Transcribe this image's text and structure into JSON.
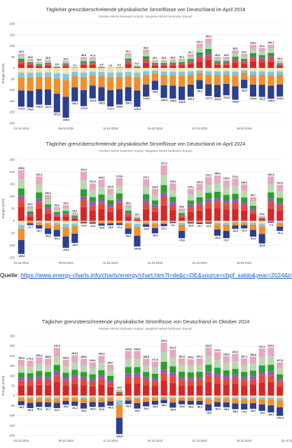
{
  "source": {
    "label": "Quelle:",
    "url": "https://www.energy-charts.info/charts/energy/chart.htm?l=de&c=DE&source=cbpf_saldo&year=2024&interval=day"
  },
  "colors": [
    "#d62728",
    "#e8483a",
    "#9b59b6",
    "#2ca02c",
    "#b8d8b0",
    "#e6a8c0",
    "#f5e2b0",
    "#7ec8e3",
    "#f28e2b",
    "#2b3f8f"
  ],
  "chart_data": [
    {
      "type": "bar",
      "stacked": true,
      "title": "Täglicher grenzüberschreitende physikalische Stromflüsse von Deutschland im April 2018",
      "subtitle": "Positive Werte bedeuten Import. Negative Werte bedeuten Export.",
      "ylabel": "Energie (GWh)",
      "ylim": [
        -250,
        200
      ],
      "yticks": [
        -250,
        -200,
        -150,
        -100,
        -50,
        0,
        50,
        100,
        150,
        200
      ],
      "xticks": [
        "01.04.2018",
        "06.04.2018",
        "11.04.2018",
        "16.04.2018",
        "21.04.2018",
        "26.04.2018"
      ],
      "pos_totals": [
        65.0,
        40.5,
        28.4,
        36.9,
        8.8,
        32.6,
        4.1,
        48.8,
        47.8,
        6.9,
        2.5,
        5.1,
        66.7,
        11.7,
        83.2,
        36.1,
        36.1,
        39.0,
        42.1,
        62.7,
        110.1,
        134.4,
        49.5,
        49.5,
        80.0,
        64.2,
        105.1,
        91.3,
        106.1,
        33.3
      ],
      "neg_totals": [
        -175.0,
        -178.0,
        -166.0,
        -167.5,
        -201.0,
        -225.4,
        -151.1,
        -172.9,
        -137.8,
        -150.2,
        -174.3,
        -165.8,
        -150.2,
        -176.0,
        -129.6,
        -99.6,
        -135.5,
        -138.6,
        -144.9,
        -130.4,
        -95.3,
        -127.3,
        -132.5,
        -123.8,
        -143.8,
        -92.3,
        -129.6,
        -131.3,
        -139.0,
        -129.3
      ],
      "pos_labels": [
        "65,0",
        "40,5",
        "28,4",
        "36,9",
        "8,8",
        "32,6",
        "4,1",
        "48,8",
        "47,8",
        "6,9",
        "2,5",
        "5,1",
        "66,7",
        "11,7",
        "83,2",
        "36,1",
        "36,1",
        "39,0",
        "42,1",
        "62,7",
        "110,1",
        "134,4",
        "49,5",
        "49,5",
        "80,0",
        "64,2",
        "105,1",
        "91,3",
        "106,1",
        "33,3"
      ],
      "neg_labels": [
        "-175,0",
        "-178,0",
        "-166,0",
        "-167,5",
        "-201,0",
        "-225,4",
        "-151,1",
        "-172,9",
        "-137,8",
        "-150,2",
        "-174,3",
        "-165,8",
        "-150,2",
        "-176,0",
        "-129,6",
        "-99,6",
        "-135,5",
        "-138,6",
        "-144,9",
        "-130,4",
        "-95,3",
        "-127,3",
        "-132,5",
        "-123,8",
        "-143,8",
        "-92,3",
        "-129,6",
        "-131,3",
        "-139,0",
        "-129,3"
      ]
    },
    {
      "type": "bar",
      "stacked": true,
      "title": "Täglicher grenzüberschreitende physikalische Stromflüsse von Deutschland im April 2024",
      "subtitle": "Positive Werte bedeuten Import. Negative Werte bedeuten Export.",
      "ylabel": "Energie (GWh)",
      "ylim": [
        -150,
        250
      ],
      "yticks": [
        -150,
        -100,
        -50,
        0,
        50,
        100,
        150,
        200,
        250
      ],
      "xticks": [
        "01.04.2024",
        "06.04.2024",
        "11.04.2024",
        "16.04.2024",
        "21.04.2024",
        "26.04.2024"
      ],
      "pos_totals": [
        206.8,
        60.0,
        181.3,
        106.0,
        56.3,
        63.9,
        33.4,
        201.0,
        152.4,
        168.6,
        131.5,
        174.8,
        65.0,
        18.1,
        170.1,
        130.6,
        227.5,
        153.0,
        49.6,
        130.1,
        150.5,
        179.1,
        185.4,
        165.3,
        173.1,
        149.0,
        96.7,
        20.6,
        181.3,
        147.0
      ],
      "neg_totals": [
        -135.0,
        -17.7,
        -31.7,
        -54.1,
        -64.1,
        -110.0,
        -90.0,
        -10.4,
        -11.6,
        -19.8,
        -18.2,
        -17.4,
        -53.9,
        -104.8,
        -24.3,
        -50.9,
        -22.1,
        -9.1,
        -70.9,
        -10.8,
        -12.7,
        -11.6,
        -60.8,
        -70.7,
        -32.5,
        -31.0,
        -64.4,
        -92.5,
        -7.3,
        -41.1
      ],
      "pos_labels": [
        "206,8",
        "60,0",
        "181,3",
        "106,0",
        "56,3",
        "63,9",
        "33,4",
        "201,0",
        "152,4",
        "168,6",
        "131,5",
        "174,8",
        "65,0",
        "18,1",
        "170,1",
        "130,6",
        "227,5",
        "153,0",
        "49,6",
        "130,1",
        "150,5",
        "179,1",
        "185,4",
        "165,3",
        "173,1",
        "149,0",
        "96,7",
        "20,6",
        "181,3",
        "147,0"
      ],
      "neg_labels": [
        "-135,0",
        "-17,7",
        "-31,7",
        "-54,1",
        "-64,1",
        "-110,0",
        "-90,0",
        "-10,4",
        "-11,6",
        "-19,8",
        "-18,2",
        "-17,4",
        "-53,9",
        "-104,8",
        "-24,3",
        "-50,9",
        "-22,1",
        "-9,1",
        "-70,9",
        "-10,8",
        "-12,7",
        "-11,6",
        "-60,8",
        "-70,7",
        "-32,5",
        "-31,0",
        "-64,4",
        "-92,5",
        "-7,3",
        "-41,1"
      ]
    },
    {
      "type": "bar",
      "stacked": true,
      "title": "Täglicher grenzüberschreitende physikalische Stromflüsse von Deutschland im Oktober 2024",
      "subtitle": "Positive Werte bedeuten Import. Negative Werte bedeuten Export.",
      "ylabel": "Energie (GWh)",
      "ylim": [
        -200,
        300
      ],
      "yticks": [
        -200,
        -150,
        -100,
        -50,
        0,
        50,
        100,
        150,
        200,
        250,
        300
      ],
      "xticks": [
        "01.10.2024",
        "06.10.2024",
        "11.10.2024",
        "16.10.2024",
        "21.10.2024",
        "26.10.2024",
        "31.10.2024"
      ],
      "pos_totals": [
        180.2,
        176.2,
        193.3,
        185.8,
        241.3,
        180.6,
        203.5,
        185.6,
        168.1,
        200.6,
        155.7,
        30.0,
        224.8,
        224.8,
        185.8,
        171.6,
        266.6,
        231.3,
        187.6,
        183.2,
        187.2,
        242.5,
        219.6,
        198.5,
        210.6,
        187.1,
        196.8,
        237.2,
        242.6,
        167.8
      ],
      "neg_totals": [
        -48.0,
        -62.8,
        -56.6,
        -57.7,
        -62.7,
        -45.2,
        -51.2,
        -65.2,
        -56.5,
        -57.8,
        -50.3,
        -193.3,
        -42.4,
        -65.2,
        -54.1,
        -45.2,
        -38.2,
        -60.4,
        -43.8,
        -45.3,
        -46.1,
        -75.9,
        -56.4,
        -58.6,
        -68.4,
        -70.1,
        -66.1,
        -76.6,
        -84.7,
        -101.4
      ],
      "pos_labels": [
        "180,2",
        "176,2",
        "193,3",
        "185,8",
        "241,3",
        "180,6",
        "203,5",
        "185,6",
        "168,1",
        "200,6",
        "155,7",
        "30,0",
        "224,8",
        "224,8",
        "185,8",
        "171,6",
        "266,6",
        "231,3",
        "187,6",
        "183,2",
        "187,2",
        "242,5",
        "219,6",
        "198,5",
        "210,6",
        "187,1",
        "196,8",
        "237,2",
        "242,6",
        "167,8"
      ],
      "neg_labels": [
        "-48,0",
        "-62,8",
        "-56,6",
        "-57,7",
        "-62,7",
        "-45,2",
        "-51,2",
        "-65,2",
        "-56,5",
        "-57,8",
        "-50,3",
        "-193,3",
        "-42,4",
        "-65,2",
        "-54,1",
        "-45,2",
        "-38,2",
        "-60,4",
        "-43,8",
        "-45,3",
        "-46,1",
        "-75,9",
        "-56,4",
        "-58,6",
        "-68,4",
        "-70,1",
        "-66,1",
        "-76,6",
        "-84,7",
        "-101,4"
      ]
    }
  ]
}
